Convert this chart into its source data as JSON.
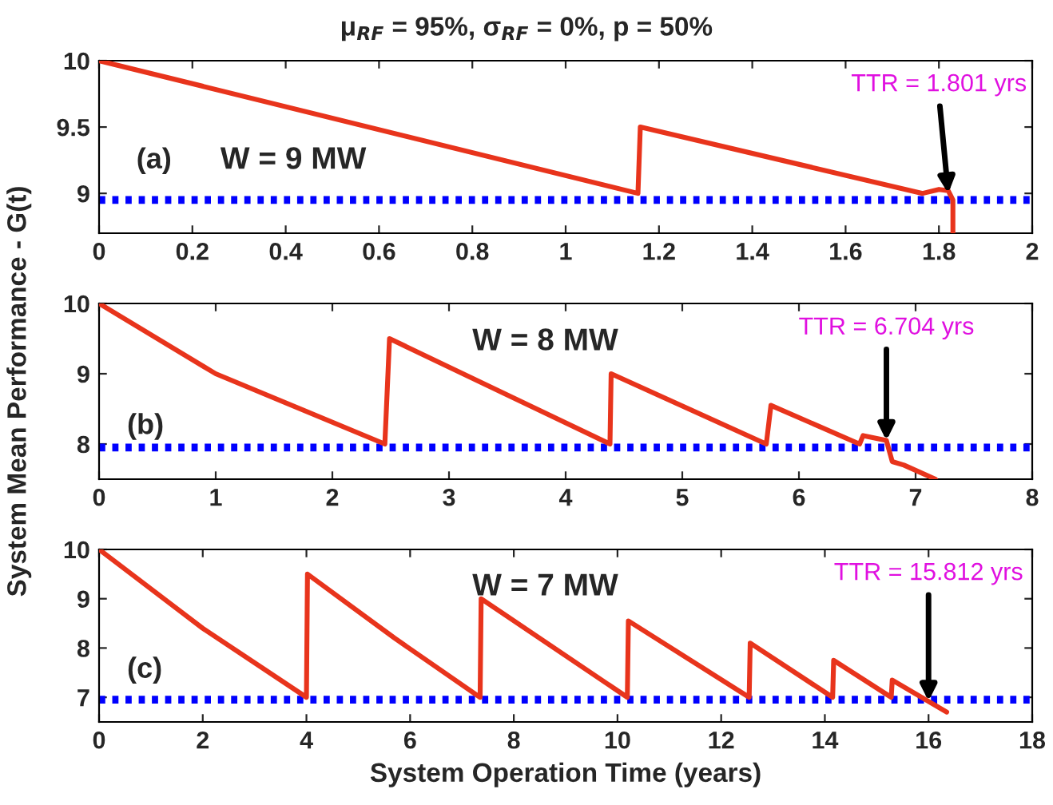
{
  "chart_data": [
    {
      "type": "line",
      "title": "μ$_{RF}$ = 95%, σ$_{RF}$ = 0%, p = 50%",
      "xlim": [
        0,
        2
      ],
      "xticks": [
        0,
        0.2,
        0.4,
        0.6,
        0.8,
        1,
        1.2,
        1.4,
        1.6,
        1.8,
        2
      ],
      "ylim": [
        8.7,
        10
      ],
      "yticks": [
        9,
        9.5,
        10
      ],
      "series": [
        {
          "color": "#e8341c",
          "x": [
            0,
            1.155,
            1.16,
            1.765,
            1.8,
            1.82,
            1.83,
            1.83
          ],
          "values": [
            10,
            9.0,
            9.5,
            9.0,
            9.03,
            9.02,
            8.95,
            8.7
          ]
        }
      ],
      "ref_lines": [
        {
          "axis": "y",
          "value": 8.95,
          "color": "#0000ff",
          "line_style": "dotted"
        }
      ],
      "annotations": [
        "(a)",
        "W = 9 MW",
        {
          "text": "TTR = 1.801 yrs",
          "x": 1.82,
          "y": 9.0
        }
      ],
      "grid": false
    },
    {
      "type": "line",
      "ylabel": "System Mean Performance - G(t)",
      "xlim": [
        0,
        8
      ],
      "xticks": [
        0,
        1,
        2,
        3,
        4,
        5,
        6,
        7,
        8
      ],
      "ylim": [
        7.5,
        10
      ],
      "yticks": [
        8,
        9,
        10
      ],
      "series": [
        {
          "color": "#e8341c",
          "x": [
            0,
            1.0,
            2.45,
            2.49,
            4.38,
            4.39,
            5.72,
            5.76,
            6.52,
            6.55,
            6.75,
            6.8,
            6.9,
            7.17
          ],
          "values": [
            10,
            9.0,
            8.0,
            9.5,
            8.0,
            9.0,
            8.0,
            8.55,
            8.0,
            8.12,
            8.05,
            7.75,
            7.7,
            7.5
          ]
        }
      ],
      "ref_lines": [
        {
          "axis": "y",
          "value": 7.95,
          "color": "#0000ff",
          "line_style": "dotted"
        }
      ],
      "annotations": [
        "(b)",
        "W = 8 MW",
        {
          "text": "TTR = 6.704 yrs",
          "x": 6.75,
          "y": 8.05
        }
      ],
      "grid": false
    },
    {
      "type": "line",
      "xlabel": "System Operation Time (years)",
      "xlim": [
        0,
        18
      ],
      "xticks": [
        0,
        2,
        4,
        6,
        8,
        10,
        12,
        14,
        16,
        18
      ],
      "ylim": [
        6.5,
        10
      ],
      "yticks": [
        7,
        8,
        9,
        10
      ],
      "series": [
        {
          "color": "#e8341c",
          "x": [
            0,
            2,
            4.0,
            4.02,
            5.7,
            7.35,
            7.37,
            10.19,
            10.21,
            12.54,
            12.56,
            14.15,
            14.17,
            15.28,
            15.3,
            16.35
          ],
          "values": [
            10,
            8.4,
            7.0,
            9.5,
            8.2,
            7.0,
            9.0,
            7.0,
            8.55,
            7.0,
            8.1,
            7.0,
            7.75,
            7.0,
            7.35,
            6.7
          ]
        }
      ],
      "ref_lines": [
        {
          "axis": "y",
          "value": 6.95,
          "color": "#0000ff",
          "line_style": "dotted"
        }
      ],
      "annotations": [
        "(c)",
        "W = 7 MW",
        {
          "text": "TTR = 15.812 yrs",
          "x": 16.0,
          "y": 6.92
        }
      ],
      "grid": false
    }
  ]
}
